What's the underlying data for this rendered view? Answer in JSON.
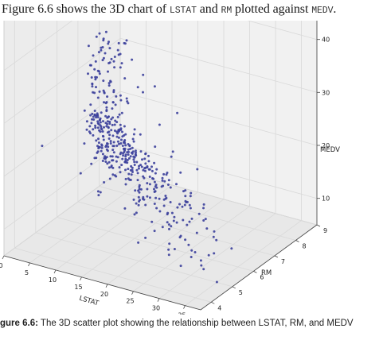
{
  "intro": {
    "t1": "Figure 6.6 shows the 3D chart of ",
    "c1": "LSTAT",
    "t2": " and ",
    "c2": "RM",
    "t3": " plotted against ",
    "c3": "MEDV",
    "t4": "."
  },
  "caption": {
    "label": "gure 6.6:",
    "text": " The 3D scatter plot showing the relationship between LSTAT, RM, and MEDV"
  },
  "colors": {
    "point": "#3b3f9b",
    "pane_back": "#f1f1f1",
    "pane_side": "#ececec",
    "pane_floor": "#e8e8e8"
  },
  "chart_data": {
    "type": "scatter",
    "title": "",
    "xlabel": "LSTAT",
    "ylabel": "RM",
    "zlabel": "MEDV",
    "xlim": [
      0,
      38
    ],
    "ylim": [
      3.5,
      9
    ],
    "zlim": [
      5,
      50
    ],
    "xticks": [
      "0",
      "5",
      "10",
      "15",
      "20",
      "25",
      "30",
      "35"
    ],
    "yticks": [
      "4",
      "5",
      "6",
      "7",
      "8",
      "9"
    ],
    "zticks": [
      "10",
      "20",
      "30",
      "40",
      "50"
    ],
    "grid": true,
    "projection": "3d",
    "x": [
      4.98,
      9.14,
      4.03,
      2.94,
      5.33,
      5.21,
      12.43,
      19.15,
      29.93,
      17.1,
      20.45,
      13.27,
      15.71,
      8.26,
      10.26,
      8.47,
      6.58,
      14.67,
      11.69,
      11.28,
      21.02,
      13.83,
      18.72,
      19.88,
      16.3,
      16.51,
      14.81,
      17.28,
      12.8,
      11.98,
      22.6,
      13.04,
      27.71,
      18.35,
      20.34,
      9.68,
      11.41,
      8.77,
      10.13,
      4.32,
      1.98,
      4.84,
      5.81,
      7.44,
      9.55,
      10.21,
      14.15,
      18.8,
      30.81,
      16.2,
      13.45,
      9.43,
      5.28,
      8.43,
      14.8,
      4.81,
      5.77,
      3.95,
      6.86,
      9.22,
      13.15,
      14.44,
      6.73,
      9.5,
      8.05,
      4.67,
      10.24,
      8.1,
      13.09,
      8.79,
      6.72,
      9.88,
      5.52,
      7.54,
      6.78,
      8.94,
      11.97,
      10.27,
      12.34,
      9.1,
      5.29,
      7.22,
      6.72,
      7.51,
      9.62,
      6.53,
      12.86,
      8.44,
      5.5,
      5.7,
      8.81,
      8.2,
      8.16,
      6.21,
      10.59,
      6.65,
      11.34,
      4.21,
      3.57,
      6.19,
      9.42,
      7.67,
      10.63,
      13.44,
      12.33,
      16.47,
      18.66,
      14.09,
      12.27,
      15.55,
      13.0,
      10.16,
      16.21,
      17.09,
      10.45,
      15.76,
      12.04,
      10.3,
      15.37,
      13.61,
      14.37,
      14.27,
      17.93,
      25.41,
      17.58,
      14.81,
      27.26,
      17.19,
      15.39,
      18.34,
      12.6,
      12.26,
      11.12,
      15.03,
      17.31,
      16.96,
      16.9,
      14.59,
      21.32,
      18.46,
      24.16,
      34.41,
      26.82,
      26.42,
      29.29,
      27.8,
      16.65,
      29.53,
      28.32,
      21.45,
      14.1,
      13.28,
      12.12,
      15.79,
      15.12,
      15.02,
      16.14,
      4.59,
      6.43,
      7.39,
      5.5,
      1.73,
      1.92,
      3.32,
      11.64,
      9.81,
      3.7,
      12.14,
      11.1,
      11.32,
      14.43,
      12.03,
      14.69,
      9.04,
      9.64,
      5.33,
      10.11,
      6.29,
      6.92,
      5.04,
      7.56,
      9.45,
      4.82,
      5.68,
      13.98,
      13.15,
      4.45,
      6.68,
      4.56,
      5.39,
      5.1,
      4.69,
      2.87,
      5.03,
      4.38,
      2.97,
      4.08,
      8.61,
      6.62,
      4.56,
      4.45,
      7.43,
      3.11,
      3.81,
      2.88,
      10.87,
      10.97,
      18.06,
      14.66,
      23.09,
      17.27,
      23.98,
      16.03,
      9.38,
      29.55,
      9.47,
      13.51,
      9.69,
      17.92,
      10.5,
      9.71,
      21.46,
      9.93,
      7.6,
      4.14,
      4.63,
      3.13,
      6.36,
      3.92,
      3.76,
      11.65,
      5.25,
      2.47,
      3.95,
      8.05,
      10.88,
      9.54,
      4.73,
      6.36,
      7.37,
      11.38,
      12.4,
      11.22,
      5.19,
      12.5,
      18.46,
      9.16,
      10.15,
      9.52,
      6.56,
      5.9,
      3.59,
      3.53,
      3.54,
      6.57,
      9.25,
      3.11,
      5.12,
      7.79,
      6.9,
      9.59,
      7.26,
      5.91,
      11.25,
      8.1,
      10.45,
      14.79,
      7.44,
      3.16,
      13.65,
      13.0,
      6.59,
      7.73,
      6.58,
      3.53,
      2.98,
      6.05,
      4.16,
      7.19,
      4.85,
      3.76,
      4.59,
      3.01,
      3.16,
      7.85,
      8.23,
      12.93,
      7.14,
      7.6,
      9.51,
      3.33,
      3.56,
      4.7,
      8.58,
      10.4,
      6.27,
      7.39,
      15.84,
      4.97,
      4.74,
      6.07,
      9.5,
      8.67,
      4.86,
      6.93,
      8.93,
      6.47,
      7.53,
      4.54,
      9.97,
      12.64,
      5.98,
      11.72,
      7.9,
      9.28,
      11.5,
      18.33,
      15.94,
      10.36,
      12.73,
      7.2,
      6.87,
      7.7,
      11.74,
      6.12,
      5.08,
      6.15,
      12.79,
      9.97,
      7.34,
      9.09,
      12.43,
      7.83,
      5.68,
      6.75,
      8.01,
      9.8,
      10.56,
      8.51,
      9.74,
      9.29,
      5.49,
      8.65,
      7.18,
      4.61,
      10.53,
      12.67,
      6.36,
      5.99,
      5.89,
      5.98,
      5.49,
      7.79,
      4.5,
      8.05,
      5.57,
      17.6,
      13.27,
      11.48,
      12.67,
      7.79,
      14.19,
      10.19,
      14.64,
      5.29,
      7.12,
      14.0,
      13.33,
      3.26,
      3.73,
      2.96,
      9.53,
      8.88,
      34.77,
      37.97,
      13.44,
      23.24,
      21.24,
      23.69,
      21.78,
      17.21,
      21.08,
      23.6,
      24.56,
      30.63,
      30.81,
      28.28,
      31.99,
      30.62,
      20.85,
      17.11,
      18.76,
      25.68,
      15.17,
      16.35,
      17.12,
      19.37,
      19.92,
      30.59,
      29.97,
      26.77,
      20.32,
      20.31,
      19.77,
      27.38,
      22.98,
      23.34,
      12.13,
      26.4,
      19.78,
      10.11,
      21.22,
      34.37,
      20.08,
      36.98,
      29.05,
      25.79,
      26.64,
      20.62,
      22.74,
      15.02,
      15.7,
      14.1,
      23.29,
      17.16,
      24.39,
      15.69,
      14.52,
      21.52,
      24.08,
      17.64,
      19.69,
      12.03,
      16.22,
      15.17,
      23.27,
      18.05,
      26.45,
      34.02,
      22.88,
      22.11,
      19.52,
      16.59,
      18.85,
      23.79,
      23.98,
      17.79,
      16.44,
      18.13,
      19.31,
      17.44,
      17.73,
      17.27,
      16.74,
      18.71,
      18.13,
      19.01,
      16.94,
      16.23,
      14.7,
      16.42,
      14.65,
      13.99,
      10.29,
      13.22,
      14.13,
      17.15,
      21.32,
      18.13,
      14.76,
      16.29,
      12.87,
      14.36,
      11.66,
      18.14,
      24.1,
      18.68,
      24.91,
      18.03,
      13.11,
      10.74,
      7.74,
      7.01,
      10.42,
      13.34,
      10.58,
      14.98,
      11.45,
      18.06,
      23.97,
      29.68,
      18.07,
      13.35,
      12.01,
      13.59,
      17.6,
      21.14,
      14.1,
      12.92,
      15.1,
      14.33,
      9.67,
      9.08,
      5.64,
      6.48,
      7.88
    ],
    "y": [
      6.575,
      6.421,
      7.185,
      6.998,
      7.147,
      6.43,
      6.012,
      6.172,
      5.631,
      6.004,
      6.377,
      6.009,
      5.889,
      5.949,
      6.096,
      5.834,
      5.935,
      5.99,
      5.456,
      5.727,
      5.57,
      5.965,
      6.142,
      5.813,
      5.924,
      5.599,
      5.813,
      6.047,
      6.495,
      6.674,
      5.713,
      6.072,
      5.95,
      5.701,
      6.096,
      5.933,
      5.841,
      5.85,
      5.966,
      6.595,
      7.024,
      6.77,
      6.169,
      6.211,
      6.069,
      5.682,
      5.786,
      6.03,
      5.399,
      5.602,
      5.963,
      6.115,
      6.511,
      5.998,
      5.888,
      7.249,
      6.383,
      6.816,
      6.145,
      5.927,
      5.741,
      5.966,
      6.456,
      6.762,
      7.104,
      6.29,
      5.787,
      5.878,
      5.594,
      5.885,
      6.417,
      5.961,
      6.065,
      6.245,
      6.273,
      6.286,
      6.279,
      6.14,
      6.232,
      5.874,
      6.727,
      6.619,
      6.302,
      6.167,
      6.389,
      6.63,
      6.015,
      6.121,
      7.007,
      7.079,
      6.417,
      6.405,
      6.442,
      6.211,
      6.249,
      6.625,
      6.163,
      8.069,
      7.82,
      7.416,
      6.727,
      6.781,
      6.405,
      6.137,
      6.167,
      5.851,
      5.836,
      6.127,
      6.474,
      6.229,
      6.195,
      6.715,
      5.913,
      6.092,
      6.254,
      5.928,
      6.176,
      6.021,
      5.872,
      5.731,
      5.87,
      6.004,
      5.961,
      5.856,
      5.879,
      5.986,
      5.613,
      5.693,
      6.431,
      5.637,
      6.458,
      6.326,
      6.372,
      5.822,
      5.757,
      6.335,
      5.942,
      6.454,
      5.857,
      6.151,
      6.174,
      5.019,
      5.403,
      5.468,
      4.903,
      6.13,
      5.628,
      4.926,
      5.186,
      5.597,
      6.122,
      5.404,
      5.012,
      5.709,
      6.129,
      6.152,
      5.272,
      6.943,
      6.066,
      6.51,
      6.25,
      7.489,
      7.802,
      8.375,
      5.854,
      6.101,
      7.929,
      5.877,
      6.319,
      6.402,
      5.875,
      5.88,
      5.572,
      6.416,
      5.859,
      6.546,
      6.02,
      6.315,
      6.86,
      6.98,
      7.765,
      6.144,
      7.155,
      6.563,
      5.604,
      6.153,
      7.831,
      6.782,
      6.556,
      7.185,
      6.951,
      6.739,
      7.178,
      6.8,
      6.604,
      7.875,
      7.287,
      7.107,
      7.274,
      6.975,
      7.135,
      6.162,
      7.61,
      7.853,
      8.034,
      5.891,
      6.326,
      5.783,
      6.064,
      5.344,
      5.96,
      5.404,
      5.807,
      6.375,
      5.412,
      6.182,
      5.888,
      6.642,
      5.951,
      6.373,
      6.951,
      6.164,
      6.879,
      6.618,
      8.266,
      8.725,
      8.04,
      7.163,
      7.686,
      6.552,
      5.981,
      7.412,
      8.337,
      8.247,
      6.726,
      6.086,
      6.631,
      7.358,
      6.481,
      6.606,
      6.897,
      6.095,
      6.358,
      6.393,
      5.593,
      5.605,
      6.108,
      6.226,
      6.433,
      6.718,
      6.487,
      6.438,
      6.957,
      8.259,
      6.108,
      5.876,
      7.454,
      8.704,
      7.333,
      6.842,
      7.203,
      7.52,
      8.398,
      7.327,
      7.206,
      5.56,
      7.014,
      8.297,
      7.47,
      5.92,
      5.856,
      6.24,
      6.538,
      7.691,
      6.758,
      6.854,
      7.267,
      6.826,
      6.482,
      6.812,
      7.82,
      6.968,
      7.645,
      7.923,
      7.088,
      6.453,
      6.23,
      6.209,
      6.315,
      6.565,
      6.861,
      7.148,
      6.63,
      6.127,
      6.009,
      6.678,
      6.549,
      5.79,
      6.345,
      7.041,
      6.871,
      6.59,
      6.495,
      6.982,
      7.236,
      6.616,
      7.42,
      6.849,
      6.635,
      5.972,
      4.973,
      6.122,
      6.023,
      6.266,
      6.567,
      5.705,
      5.914,
      5.782,
      6.382,
      6.113,
      6.426,
      6.376,
      6.041,
      5.708,
      6.415,
      6.431,
      6.312,
      6.083,
      5.868,
      6.333,
      6.144,
      5.706,
      6.031,
      6.316,
      6.31,
      6.037,
      5.869,
      5.895,
      6.059,
      5.985,
      5.968,
      7.241,
      6.54,
      6.696,
      6.874,
      6.014,
      5.898,
      6.516,
      6.635,
      6.939,
      6.49,
      6.579,
      5.884,
      6.728,
      5.663,
      5.936,
      6.212,
      6.395,
      6.127,
      6.112,
      6.398,
      6.251,
      5.362,
      5.803,
      8.78,
      3.561,
      4.963,
      3.863,
      4.97,
      6.683,
      7.016,
      6.216,
      5.875,
      4.906,
      4.138,
      7.313,
      6.649,
      6.794,
      6.38,
      6.223,
      6.968,
      6.545,
      5.536,
      5.52,
      4.368,
      5.277,
      4.652,
      5.0,
      4.88,
      5.39,
      5.713,
      6.051,
      5.036,
      6.193,
      5.887,
      6.471,
      6.405,
      5.747,
      5.453,
      5.852,
      5.987,
      6.343,
      6.404,
      5.349,
      5.531,
      5.683,
      4.138,
      5.608,
      5.617,
      6.852,
      5.757,
      6.657,
      4.628,
      5.155,
      4.519,
      6.434,
      6.782,
      5.304,
      5.957,
      6.824,
      6.411,
      6.006,
      5.648,
      6.103,
      5.565,
      5.896,
      5.837,
      6.202,
      6.193,
      6.38,
      6.348,
      6.833,
      6.425,
      6.436,
      6.208,
      6.629,
      6.461,
      6.152,
      5.935,
      5.627,
      5.818,
      6.406,
      6.219,
      6.485,
      5.854,
      6.459,
      6.341,
      6.251,
      6.185,
      6.417,
      6.749,
      6.655,
      6.297,
      7.393,
      6.728,
      6.525,
      5.976,
      5.936,
      6.301,
      6.081,
      6.701,
      6.376,
      6.317,
      6.513,
      6.209,
      5.759,
      5.952,
      6.003,
      5.926,
      5.713,
      6.167,
      6.229,
      6.437,
      6.98,
      5.427,
      6.162,
      6.484,
      5.304,
      6.185,
      6.229,
      6.242,
      6.75,
      7.061,
      5.762,
      5.871,
      6.312,
      6.114,
      5.905,
      5.454,
      5.414,
      5.093,
      5.983,
      5.983,
      5.707,
      5.926,
      5.67,
      5.39,
      5.794,
      6.019,
      5.569,
      6.027,
      6.593,
      6.12,
      6.976,
      6.794,
      6.03
    ],
    "z": [
      24.0,
      21.6,
      34.7,
      33.4,
      36.2,
      28.7,
      22.9,
      27.1,
      16.5,
      18.9,
      15.0,
      18.9,
      21.7,
      20.4,
      18.2,
      19.9,
      23.1,
      17.5,
      20.2,
      18.2,
      13.6,
      19.6,
      15.2,
      14.5,
      15.6,
      13.9,
      16.6,
      14.8,
      18.4,
      21.0,
      12.7,
      14.5,
      13.2,
      13.1,
      13.5,
      18.9,
      20.0,
      21.0,
      24.7,
      30.8,
      34.9,
      26.6,
      25.3,
      24.7,
      21.2,
      19.3,
      20.0,
      16.6,
      14.4,
      19.4,
      19.7,
      20.5,
      25.0,
      23.4,
      18.9,
      35.4,
      24.7,
      31.6,
      23.3,
      19.6,
      18.7,
      16.0,
      22.2,
      25.0,
      33.0,
      23.5,
      19.4,
      22.0,
      17.4,
      20.9,
      24.2,
      21.7,
      22.8,
      23.4,
      24.1,
      21.4,
      20.0,
      20.8,
      21.2,
      20.3,
      28.0,
      23.9,
      24.8,
      22.9,
      23.9,
      26.6,
      22.5,
      22.2,
      23.6,
      28.7,
      22.6,
      22.0,
      22.9,
      25.0,
      20.6,
      28.4,
      21.4,
      38.7,
      43.8,
      33.2,
      27.5,
      26.5,
      18.6,
      19.3,
      20.1,
      19.5,
      19.5,
      20.4,
      19.8,
      19.4,
      21.7,
      22.8,
      18.8,
      18.7,
      18.5,
      18.3,
      21.2,
      19.2,
      20.4,
      19.3,
      22.0,
      20.3,
      20.5,
      17.3,
      18.8,
      21.4,
      15.7,
      16.2,
      18.0,
      14.3,
      19.2,
      19.6,
      23.0,
      18.4,
      15.6,
      18.1,
      17.4,
      17.1,
      13.3,
      17.8,
      14.0,
      14.4,
      13.4,
      15.6,
      11.8,
      13.8,
      15.6,
      14.6,
      17.8,
      15.4,
      21.5,
      19.6,
      15.3,
      19.4,
      17.0,
      15.6,
      13.1,
      41.3,
      24.3,
      23.3,
      27.0,
      50.0,
      50.0,
      50.0,
      22.7,
      25.0,
      50.0,
      23.8,
      23.8,
      22.3,
      17.4,
      19.1,
      23.1,
      23.6,
      22.6,
      29.4,
      23.2,
      24.6,
      29.9,
      37.2,
      39.8,
      36.2,
      37.9,
      32.5,
      26.4,
      29.6,
      50.0,
      32.0,
      29.8,
      34.9,
      37.0,
      30.5,
      36.4,
      31.1,
      29.1,
      50.0,
      33.3,
      30.3,
      34.6,
      34.9,
      32.9,
      24.1,
      42.3,
      48.5,
      50.0,
      22.6,
      24.4,
      22.5,
      24.4,
      20.0,
      21.7,
      19.3,
      22.4,
      28.1,
      23.7,
      25.0,
      23.3,
      28.7,
      21.5,
      23.0,
      26.7,
      21.7,
      27.5,
      30.1,
      44.8,
      50.0,
      37.6,
      31.6,
      46.7,
      31.5,
      24.3,
      31.7,
      41.7,
      48.3,
      29.0,
      24.0,
      25.1,
      31.5,
      23.7,
      23.3,
      22.0,
      20.1,
      22.2,
      23.7,
      17.6,
      18.5,
      24.3,
      20.5,
      24.5,
      26.2,
      24.4,
      24.8,
      29.6,
      42.8,
      21.9,
      20.9,
      44.0,
      50.0,
      36.0,
      30.1,
      33.8,
      43.1,
      48.8,
      31.0,
      36.5,
      22.8,
      30.7,
      50.0,
      43.5,
      20.7,
      21.1,
      25.2,
      24.4,
      35.2,
      32.4,
      32.0,
      33.2,
      33.1,
      29.1,
      35.1,
      45.4,
      35.4,
      46.0,
      50.0,
      32.2,
      22.0,
      20.1,
      23.2,
      22.3,
      24.8,
      28.5,
      37.3,
      27.9,
      23.9,
      21.7,
      28.6,
      27.1,
      20.3,
      22.5,
      29.0,
      24.8,
      22.0,
      26.4,
      33.1,
      36.1,
      28.4,
      33.4,
      28.2,
      22.8,
      20.3,
      16.1,
      22.1,
      19.4,
      21.6,
      23.8,
      16.2,
      17.8,
      19.8,
      23.1,
      21.0,
      23.8,
      23.1,
      20.4,
      18.5,
      25.0,
      24.6,
      23.0,
      22.2,
      19.3,
      22.6,
      19.8,
      17.1,
      19.4,
      22.2,
      20.7,
      21.1,
      19.5,
      18.5,
      20.6,
      19.0,
      18.7,
      32.7,
      16.5,
      23.9,
      31.2,
      17.5,
      17.2,
      23.1,
      24.5,
      26.6,
      22.9,
      24.1,
      18.6,
      30.1,
      18.2,
      20.6,
      17.8,
      21.7,
      22.7,
      22.6,
      25.0,
      19.9,
      20.8,
      16.8,
      21.9,
      27.5,
      21.9,
      23.1,
      50.0,
      50.0,
      50.0,
      50.0,
      50.0,
      13.8,
      13.8,
      15.0,
      13.9,
      13.3,
      13.1,
      10.2,
      10.4,
      10.9,
      11.3,
      12.3,
      8.8,
      7.2,
      10.5,
      7.4,
      10.2,
      11.5,
      15.1,
      23.2,
      9.7,
      13.8,
      12.7,
      13.1,
      12.5,
      8.5,
      5.0,
      6.3,
      5.6,
      7.2,
      12.1,
      8.3,
      8.5,
      5.0,
      11.9,
      27.9,
      17.2,
      27.5,
      15.0,
      17.2,
      17.9,
      16.3,
      7.0,
      7.2,
      7.5,
      10.4,
      8.8,
      8.4,
      16.7,
      14.2,
      20.8,
      13.4,
      11.7,
      8.3,
      10.2,
      10.9,
      11.0,
      9.5,
      14.5,
      14.1,
      16.1,
      14.3,
      11.7,
      13.4,
      9.6,
      8.7,
      8.4,
      12.8,
      10.5,
      17.1,
      18.4,
      15.4,
      10.8,
      11.8,
      14.9,
      12.6,
      14.1,
      13.0,
      13.4,
      15.2,
      16.1,
      17.8,
      14.9,
      14.1,
      12.7,
      13.5,
      14.9,
      20.0,
      16.4,
      17.7,
      19.5,
      20.2,
      21.4,
      19.9,
      19.0,
      19.1,
      19.1,
      20.1,
      19.9,
      19.6,
      23.2,
      29.8,
      13.8,
      13.3,
      16.7,
      12.0,
      14.6,
      21.4,
      23.0,
      23.7,
      25.0,
      21.8,
      20.6,
      21.2,
      19.1,
      20.6,
      15.2,
      7.0,
      8.1,
      13.6,
      20.1,
      21.8,
      24.5,
      23.1,
      19.7,
      18.3,
      21.2,
      17.5,
      16.8,
      22.4,
      20.6,
      23.9,
      22.0,
      11.9
    ]
  }
}
